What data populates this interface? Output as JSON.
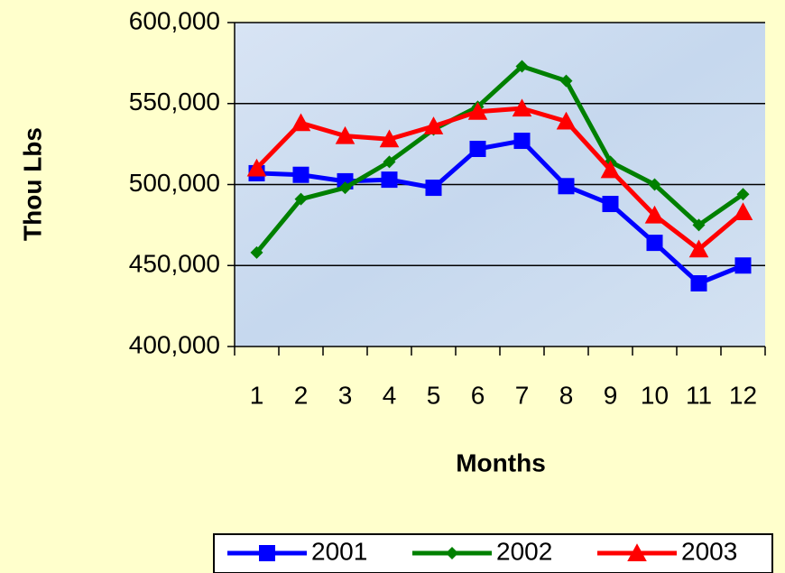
{
  "chart_data": {
    "type": "line",
    "x_label": "Months",
    "y_label": "Thou Lbs",
    "categories": [
      "1",
      "2",
      "3",
      "4",
      "5",
      "6",
      "7",
      "8",
      "9",
      "10",
      "11",
      "12"
    ],
    "series": [
      {
        "name": "2001",
        "color": "#0000ff",
        "marker": "square",
        "values": [
          507000,
          506000,
          502000,
          503000,
          498000,
          522000,
          527000,
          499000,
          488000,
          464000,
          439000,
          450000
        ]
      },
      {
        "name": "2002",
        "color": "#008000",
        "marker": "diamond",
        "values": [
          458000,
          491000,
          498000,
          514000,
          534000,
          548000,
          573000,
          564000,
          514000,
          500000,
          475000,
          494000
        ]
      },
      {
        "name": "2003",
        "color": "#ff0000",
        "marker": "triangle",
        "values": [
          510000,
          538000,
          530000,
          528000,
          536000,
          545000,
          547000,
          539000,
          509000,
          481000,
          460000,
          483000
        ]
      }
    ],
    "ylim": [
      400000,
      600000
    ],
    "yticks": [
      {
        "value": 400000,
        "label": "400,000"
      },
      {
        "value": 450000,
        "label": "450,000"
      },
      {
        "value": 500000,
        "label": "500,000"
      },
      {
        "value": 550000,
        "label": "550,000"
      },
      {
        "value": 600000,
        "label": "600,000"
      }
    ],
    "grid": true,
    "legend": "bottom"
  }
}
